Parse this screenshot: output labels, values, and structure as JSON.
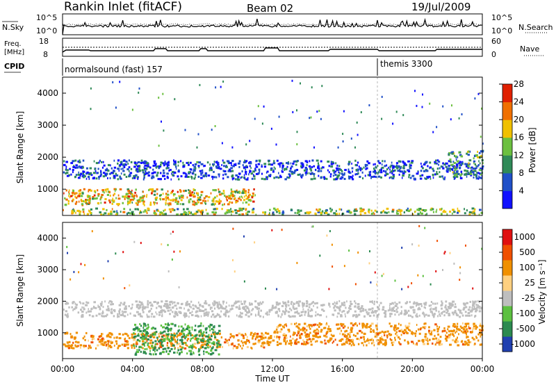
{
  "header": {
    "title": "Rankin Inlet (fitACF)",
    "beam": "Beam 02",
    "date": "19/Jul/2009"
  },
  "mini_panels": {
    "nsky_label": "N.Sky",
    "nsearch_label": "N.Search",
    "nsky_ticks": [
      "10^5",
      "10^0"
    ],
    "nsearch_ticks": [
      "10^5",
      "10^0"
    ],
    "freq_label_1": "Freq.",
    "freq_label_2": "[MHz]",
    "freq_ticks": [
      "18",
      "8"
    ],
    "nave_label": "Nave",
    "nave_ticks": [
      "60",
      "0"
    ],
    "cpid_label": "CPID",
    "cpid_segments": [
      {
        "label": "normalsound (fast) 157",
        "start_hour": 0
      },
      {
        "label": "themis 3300",
        "start_hour": 18
      }
    ]
  },
  "x_axis": {
    "label": "Time UT",
    "ticks": [
      "00:00",
      "04:00",
      "08:00",
      "12:00",
      "16:00",
      "20:00",
      "00:00"
    ],
    "range_hours": [
      0,
      24
    ]
  },
  "chart_data": [
    {
      "type": "heatmap",
      "quantity": "Power",
      "ylabel": "Slant Range [km]",
      "yticks": [
        1000,
        2000,
        3000,
        4000
      ],
      "ylim": [
        180,
        4500
      ],
      "colorbar_label": "Power [dB]",
      "colorbar_ticks": [
        4,
        8,
        12,
        16,
        20,
        24,
        28
      ],
      "colorbar_colors": [
        "#1010ff",
        "#2050c8",
        "#308a58",
        "#6cc040",
        "#f0c000",
        "#f07000",
        "#e02000"
      ],
      "echo_bands": [
        {
          "t_start": 0,
          "t_end": 24,
          "range_km": [
            200,
            400
          ],
          "level": "mixed"
        },
        {
          "t_start": 0,
          "t_end": 11,
          "range_km": [
            500,
            1000
          ],
          "level": "high"
        },
        {
          "t_start": 0,
          "t_end": 24,
          "range_km": [
            1300,
            1900
          ],
          "level": "low"
        },
        {
          "t_start": 22,
          "t_end": 24,
          "range_km": [
            1400,
            2200
          ],
          "level": "medium"
        }
      ]
    },
    {
      "type": "heatmap",
      "quantity": "Velocity",
      "ylabel": "Slant Range [km]",
      "yticks": [
        1000,
        2000,
        3000,
        4000
      ],
      "ylim": [
        180,
        4500
      ],
      "colorbar_label": "Velocity [m s⁻¹]",
      "colorbar_ticks": [
        "1000",
        "500",
        "100",
        "25",
        "-25",
        "-100",
        "-500",
        "-1000"
      ],
      "colorbar_colors": [
        "#2040b0",
        "#2c8a50",
        "#5cc040",
        "#bebebe",
        "#ffd080",
        "#f09000",
        "#f05000",
        "#e01010"
      ],
      "echo_bands": [
        {
          "t_start": 0,
          "t_end": 24,
          "range_km": [
            1500,
            2000
          ],
          "level": "ground scatter"
        },
        {
          "t_start": 0,
          "t_end": 12,
          "range_km": [
            500,
            1000
          ],
          "level": "away"
        },
        {
          "t_start": 12,
          "t_end": 24,
          "range_km": [
            600,
            1300
          ],
          "level": "away"
        },
        {
          "t_start": 4,
          "t_end": 9,
          "range_km": [
            300,
            1300
          ],
          "level": "toward"
        }
      ]
    }
  ]
}
